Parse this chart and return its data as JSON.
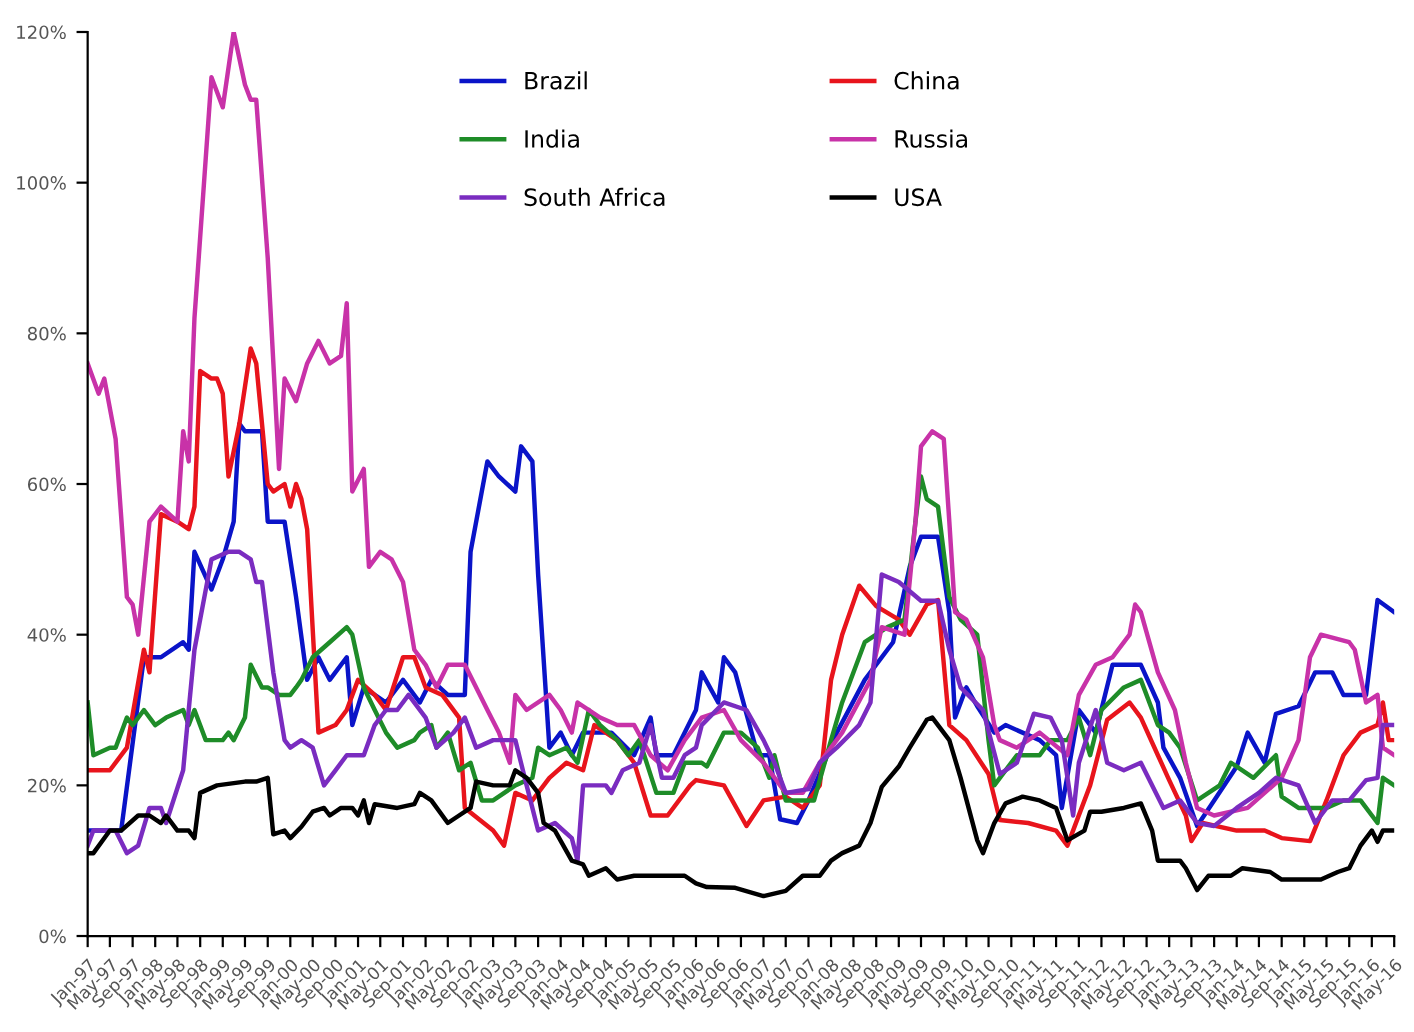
{
  "chart_data": {
    "type": "line",
    "xlim": [
      "1997-01",
      "2016-05"
    ],
    "ylim": [
      0,
      120
    ],
    "yticks": [
      {
        "value": 0,
        "label": "0%"
      },
      {
        "value": 20,
        "label": "20%"
      },
      {
        "value": 40,
        "label": "40%"
      },
      {
        "value": 60,
        "label": "60%"
      },
      {
        "value": 80,
        "label": "80%"
      },
      {
        "value": 100,
        "label": "100%"
      },
      {
        "value": 120,
        "label": "120%"
      }
    ],
    "xticks": [
      {
        "value": "1997-01",
        "label": "Jan-97"
      },
      {
        "value": "1997-05",
        "label": "May-97"
      },
      {
        "value": "1997-09",
        "label": "Sep-97"
      },
      {
        "value": "1998-01",
        "label": "Jan-98"
      },
      {
        "value": "1998-05",
        "label": "May-98"
      },
      {
        "value": "1998-09",
        "label": "Sep-98"
      },
      {
        "value": "1999-01",
        "label": "Jan-99"
      },
      {
        "value": "1999-05",
        "label": "May-99"
      },
      {
        "value": "1999-09",
        "label": "Sep-99"
      },
      {
        "value": "2000-01",
        "label": "Jan-00"
      },
      {
        "value": "2000-05",
        "label": "May-00"
      },
      {
        "value": "2000-09",
        "label": "Sep-00"
      },
      {
        "value": "2001-01",
        "label": "Jan-01"
      },
      {
        "value": "2001-05",
        "label": "May-01"
      },
      {
        "value": "2001-09",
        "label": "Sep-01"
      },
      {
        "value": "2002-01",
        "label": "Jan-02"
      },
      {
        "value": "2002-05",
        "label": "May-02"
      },
      {
        "value": "2002-09",
        "label": "Sep-02"
      },
      {
        "value": "2003-01",
        "label": "Jan-03"
      },
      {
        "value": "2003-05",
        "label": "May-03"
      },
      {
        "value": "2003-09",
        "label": "Sep-03"
      },
      {
        "value": "2004-01",
        "label": "Jan-04"
      },
      {
        "value": "2004-05",
        "label": "May-04"
      },
      {
        "value": "2004-09",
        "label": "Sep-04"
      },
      {
        "value": "2005-01",
        "label": "Jan-05"
      },
      {
        "value": "2005-05",
        "label": "May-05"
      },
      {
        "value": "2005-09",
        "label": "Sep-05"
      },
      {
        "value": "2006-01",
        "label": "Jan-06"
      },
      {
        "value": "2006-05",
        "label": "May-06"
      },
      {
        "value": "2006-09",
        "label": "Sep-06"
      },
      {
        "value": "2007-01",
        "label": "Jan-07"
      },
      {
        "value": "2007-05",
        "label": "May-07"
      },
      {
        "value": "2007-09",
        "label": "Sep-07"
      },
      {
        "value": "2008-01",
        "label": "Jan-08"
      },
      {
        "value": "2008-05",
        "label": "May-08"
      },
      {
        "value": "2008-09",
        "label": "Sep-08"
      },
      {
        "value": "2009-01",
        "label": "Jan-09"
      },
      {
        "value": "2009-05",
        "label": "May-09"
      },
      {
        "value": "2009-09",
        "label": "Sep-09"
      },
      {
        "value": "2010-01",
        "label": "Jan-10"
      },
      {
        "value": "2010-05",
        "label": "May-10"
      },
      {
        "value": "2010-09",
        "label": "Sep-10"
      },
      {
        "value": "2011-01",
        "label": "Jan-11"
      },
      {
        "value": "2011-05",
        "label": "May-11"
      },
      {
        "value": "2011-09",
        "label": "Sep-11"
      },
      {
        "value": "2012-01",
        "label": "Jan-12"
      },
      {
        "value": "2012-05",
        "label": "May-12"
      },
      {
        "value": "2012-09",
        "label": "Sep-12"
      },
      {
        "value": "2013-01",
        "label": "Jan-13"
      },
      {
        "value": "2013-05",
        "label": "May-13"
      },
      {
        "value": "2013-09",
        "label": "Sep-13"
      },
      {
        "value": "2014-01",
        "label": "Jan-14"
      },
      {
        "value": "2014-05",
        "label": "May-14"
      },
      {
        "value": "2014-09",
        "label": "Sep-14"
      },
      {
        "value": "2015-01",
        "label": "Jan-15"
      },
      {
        "value": "2015-05",
        "label": "May-15"
      },
      {
        "value": "2015-09",
        "label": "Sep-15"
      },
      {
        "value": "2016-01",
        "label": "Jan-16"
      },
      {
        "value": "2016-05",
        "label": "May-16"
      }
    ],
    "grid": false,
    "legend": "top",
    "marker": "none",
    "line_style": "solid",
    "series": [
      {
        "name": "Brazil",
        "color": "#0a14c8",
        "x": [
          "1997-01",
          "1997-07",
          "1997-11",
          "1998-02",
          "1998-06",
          "1998-07",
          "1998-08",
          "1998-11",
          "1999-01",
          "1999-03",
          "1999-04",
          "1999-05",
          "1999-08",
          "1999-09",
          "1999-12",
          "2000-02",
          "2000-04",
          "2000-06",
          "2000-08",
          "2000-11",
          "2000-12",
          "2001-02",
          "2001-06",
          "2001-09",
          "2001-12",
          "2002-02",
          "2002-05",
          "2002-08",
          "2002-09",
          "2002-12",
          "2003-02",
          "2003-05",
          "2003-06",
          "2003-08",
          "2003-09",
          "2003-11",
          "2004-01",
          "2004-03",
          "2004-05",
          "2004-10",
          "2005-02",
          "2005-05",
          "2005-06",
          "2005-09",
          "2006-01",
          "2006-02",
          "2006-05",
          "2006-06",
          "2006-08",
          "2006-12",
          "2007-02",
          "2007-04",
          "2007-07",
          "2007-09",
          "2008-02",
          "2008-07",
          "2008-12",
          "2009-03",
          "2009-05",
          "2009-08",
          "2009-10",
          "2009-11",
          "2010-01",
          "2010-03",
          "2010-06",
          "2010-08",
          "2011-02",
          "2011-05",
          "2011-06",
          "2011-09",
          "2011-12",
          "2012-03",
          "2012-08",
          "2012-11",
          "2012-12",
          "2013-03",
          "2013-06",
          "2013-09",
          "2014-01",
          "2014-03",
          "2014-06",
          "2014-08",
          "2014-12",
          "2015-03",
          "2015-06",
          "2015-08",
          "2015-12",
          "2016-02",
          "2016-05"
        ],
        "values": [
          14,
          14,
          37,
          37,
          39,
          38,
          51,
          46,
          50,
          55,
          68,
          67,
          67,
          55,
          55,
          45,
          34,
          37,
          34,
          37,
          28,
          33,
          31,
          34,
          31,
          34,
          32,
          32,
          51,
          63,
          61,
          59,
          65,
          63,
          48,
          25,
          27,
          24,
          27,
          27,
          24,
          29,
          24,
          24,
          30,
          35,
          31,
          37,
          35,
          24,
          24,
          15.5,
          15,
          18,
          27,
          34,
          39,
          49,
          53,
          53,
          43,
          29,
          33,
          30.5,
          27,
          28,
          26,
          24,
          17,
          30,
          27,
          36,
          36,
          31,
          25,
          21,
          14.6,
          18,
          22.5,
          27,
          23,
          29.5,
          30.5,
          35,
          35,
          32,
          32,
          44.6,
          43
        ]
      },
      {
        "name": "China",
        "color": "#e8141c",
        "x": [
          "1997-01",
          "1997-05",
          "1997-08",
          "1997-11",
          "1997-12",
          "1998-02",
          "1998-05",
          "1998-07",
          "1998-08",
          "1998-09",
          "1998-11",
          "1998-12",
          "1999-01",
          "1999-02",
          "1999-04",
          "1999-06",
          "1999-07",
          "1999-09",
          "1999-10",
          "1999-12",
          "2000-01",
          "2000-02",
          "2000-03",
          "2000-04",
          "2000-06",
          "2000-09",
          "2000-11",
          "2001-01",
          "2001-04",
          "2001-06",
          "2001-09",
          "2001-11",
          "2002-01",
          "2002-04",
          "2002-07",
          "2002-08",
          "2003-01",
          "2003-03",
          "2003-05",
          "2003-08",
          "2003-11",
          "2004-02",
          "2004-05",
          "2004-07",
          "2004-11",
          "2005-02",
          "2005-05",
          "2005-08",
          "2005-12",
          "2006-01",
          "2006-06",
          "2006-10",
          "2007-01",
          "2007-05",
          "2007-08",
          "2007-11",
          "2008-01",
          "2008-03",
          "2008-06",
          "2008-09",
          "2009-01",
          "2009-03",
          "2009-06",
          "2009-08",
          "2009-10",
          "2010-01",
          "2010-05",
          "2010-07",
          "2010-12",
          "2011-05",
          "2011-07",
          "2011-11",
          "2012-02",
          "2012-06",
          "2012-08",
          "2012-11",
          "2013-01",
          "2013-04",
          "2013-05",
          "2013-07",
          "2014-01",
          "2014-06",
          "2014-09",
          "2015-02",
          "2015-05",
          "2015-08",
          "2015-11",
          "2016-02",
          "2016-03",
          "2016-04",
          "2016-05"
        ],
        "values": [
          22,
          22,
          25,
          38,
          35,
          56,
          55,
          54,
          57,
          75,
          74,
          74,
          72,
          61,
          68,
          78,
          76,
          60,
          59,
          60,
          57,
          60,
          58,
          54,
          27,
          28,
          30,
          34,
          32,
          30,
          37,
          37,
          33,
          32,
          29,
          17,
          14,
          12,
          19,
          18,
          21,
          23,
          22,
          28,
          26,
          23,
          16,
          16,
          20,
          20.7,
          20,
          14.6,
          18,
          18.5,
          17,
          20,
          34,
          40,
          46.5,
          43.8,
          42,
          40,
          44,
          44.6,
          28,
          26,
          21.5,
          15.4,
          15,
          14,
          12,
          20,
          28.7,
          31,
          29,
          24,
          20.7,
          16,
          12.6,
          15,
          14,
          14,
          13,
          12.6,
          18,
          24,
          27,
          28,
          31,
          26,
          26
        ]
      },
      {
        "name": "India",
        "color": "#1e8c28",
        "x": [
          "1997-01",
          "1997-02",
          "1997-05",
          "1997-06",
          "1997-08",
          "1997-09",
          "1997-11",
          "1998-01",
          "1998-03",
          "1998-06",
          "1998-07",
          "1998-08",
          "1998-10",
          "1999-01",
          "1999-02",
          "1999-03",
          "1999-05",
          "1999-06",
          "1999-08",
          "1999-09",
          "1999-11",
          "2000-01",
          "2000-02",
          "2000-03",
          "2000-05",
          "2000-08",
          "2000-11",
          "2000-12",
          "2001-02",
          "2001-04",
          "2001-06",
          "2001-08",
          "2001-11",
          "2001-12",
          "2002-02",
          "2002-03",
          "2002-05",
          "2002-07",
          "2002-09",
          "2002-11",
          "2003-01",
          "2003-05",
          "2003-08",
          "2003-09",
          "2003-11",
          "2004-02",
          "2004-04",
          "2004-06",
          "2004-08",
          "2004-11",
          "2005-01",
          "2005-03",
          "2005-06",
          "2005-09",
          "2005-11",
          "2006-02",
          "2006-03",
          "2006-06",
          "2006-09",
          "2006-12",
          "2007-02",
          "2007-03",
          "2007-05",
          "2007-10",
          "2008-01",
          "2008-03",
          "2008-07",
          "2008-11",
          "2009-02",
          "2009-04",
          "2009-05",
          "2009-06",
          "2009-08",
          "2009-10",
          "2009-12",
          "2010-03",
          "2010-05",
          "2010-06",
          "2010-10",
          "2011-02",
          "2011-04",
          "2011-07",
          "2011-09",
          "2011-11",
          "2012-01",
          "2012-05",
          "2012-08",
          "2012-11",
          "2013-01",
          "2013-03",
          "2013-06",
          "2013-10",
          "2013-12",
          "2014-04",
          "2014-08",
          "2014-09",
          "2014-12",
          "2015-05",
          "2015-08",
          "2015-11",
          "2016-02",
          "2016-03",
          "2016-05"
        ],
        "values": [
          31,
          24,
          25,
          25,
          29,
          28,
          30,
          28,
          29,
          30,
          28,
          30,
          26,
          26,
          27,
          26,
          29,
          36,
          33,
          33,
          32,
          32,
          33,
          34,
          37,
          39,
          41,
          40,
          33,
          30,
          27,
          25,
          26,
          27,
          28,
          25,
          27,
          22,
          23,
          18,
          18,
          20,
          21,
          25,
          24,
          25,
          23,
          30,
          28,
          26,
          24,
          26,
          19,
          19,
          23,
          23,
          22.5,
          27,
          27,
          25,
          21,
          24,
          18,
          18,
          26,
          31,
          39,
          41,
          42,
          55,
          61,
          58,
          57,
          45,
          42,
          40,
          26,
          20,
          24,
          24,
          26,
          26,
          29,
          24,
          30,
          33,
          34,
          28,
          27,
          25,
          18,
          20,
          23,
          21,
          24,
          18.5,
          17,
          17,
          18,
          18,
          15,
          21,
          20
        ]
      },
      {
        "name": "Russia",
        "color": "#c832a8",
        "x": [
          "1997-01",
          "1997-03",
          "1997-04",
          "1997-06",
          "1997-08",
          "1997-09",
          "1997-10",
          "1997-12",
          "1998-02",
          "1998-05",
          "1998-06",
          "1998-07",
          "1998-08",
          "1998-11",
          "1999-01",
          "1999-03",
          "1999-05",
          "1999-06",
          "1999-07",
          "1999-09",
          "1999-11",
          "1999-12",
          "2000-02",
          "2000-04",
          "2000-06",
          "2000-08",
          "2000-10",
          "2000-11",
          "2000-12",
          "2001-02",
          "2001-03",
          "2001-05",
          "2001-07",
          "2001-09",
          "2001-11",
          "2002-01",
          "2002-03",
          "2002-05",
          "2002-08",
          "2002-12",
          "2003-02",
          "2003-04",
          "2003-05",
          "2003-07",
          "2003-11",
          "2004-01",
          "2004-03",
          "2004-04",
          "2004-08",
          "2004-11",
          "2005-02",
          "2005-05",
          "2005-08",
          "2005-11",
          "2006-02",
          "2006-06",
          "2006-09",
          "2007-01",
          "2007-05",
          "2007-08",
          "2007-11",
          "2008-03",
          "2008-08",
          "2008-10",
          "2009-02",
          "2009-04",
          "2009-05",
          "2009-07",
          "2009-09",
          "2009-10",
          "2009-11",
          "2010-01",
          "2010-04",
          "2010-06",
          "2010-07",
          "2010-10",
          "2011-02",
          "2011-07",
          "2011-09",
          "2011-12",
          "2012-03",
          "2012-06",
          "2012-07",
          "2012-08",
          "2012-11",
          "2013-02",
          "2013-04",
          "2013-06",
          "2013-09",
          "2014-03",
          "2014-09",
          "2014-12",
          "2015-02",
          "2015-04",
          "2015-09",
          "2015-10",
          "2015-12",
          "2016-02",
          "2016-03",
          "2016-05"
        ],
        "values": [
          76,
          72,
          74,
          66,
          45,
          44,
          40,
          55,
          57,
          55,
          67,
          63,
          82,
          114,
          110,
          120,
          113,
          111,
          111,
          90,
          62,
          74,
          71,
          76,
          79,
          76,
          77,
          84,
          59,
          62,
          49,
          51,
          50,
          47,
          38,
          36,
          33,
          36,
          36,
          30,
          27,
          23,
          32,
          30,
          32,
          30,
          27,
          31,
          29,
          28,
          28,
          24,
          22,
          26,
          29,
          30,
          26,
          23,
          19,
          19,
          23,
          27,
          34,
          41,
          40,
          55,
          65,
          67,
          66,
          55,
          43,
          42,
          37,
          28,
          26,
          25,
          27,
          24,
          32,
          36,
          37,
          40,
          44,
          43,
          35,
          30,
          23,
          17,
          16,
          17,
          21,
          26,
          37,
          40,
          39,
          38,
          31,
          32,
          25,
          24
        ]
      },
      {
        "name": "South Africa",
        "color": "#7a2cc0",
        "x": [
          "1997-01",
          "1997-02",
          "1997-06",
          "1997-08",
          "1997-10",
          "1997-12",
          "1998-02",
          "1998-03",
          "1998-06",
          "1998-07",
          "1998-08",
          "1998-11",
          "1999-02",
          "1999-04",
          "1999-06",
          "1999-07",
          "1999-08",
          "1999-10",
          "1999-12",
          "2000-01",
          "2000-03",
          "2000-05",
          "2000-07",
          "2000-09",
          "2000-11",
          "2001-02",
          "2001-04",
          "2001-06",
          "2001-08",
          "2001-10",
          "2002-01",
          "2002-03",
          "2002-06",
          "2002-08",
          "2002-10",
          "2003-01",
          "2003-05",
          "2003-07",
          "2003-09",
          "2003-12",
          "2004-03",
          "2004-04",
          "2004-05",
          "2004-09",
          "2004-10",
          "2004-12",
          "2005-03",
          "2005-05",
          "2005-07",
          "2005-09",
          "2005-11",
          "2006-01",
          "2006-02",
          "2006-06",
          "2006-10",
          "2007-01",
          "2007-03",
          "2007-05",
          "2007-09",
          "2007-11",
          "2008-02",
          "2008-06",
          "2008-08",
          "2008-10",
          "2009-01",
          "2009-05",
          "2009-08",
          "2009-10",
          "2009-12",
          "2010-04",
          "2010-07",
          "2010-10",
          "2011-01",
          "2011-04",
          "2011-06",
          "2011-08",
          "2011-09",
          "2011-12",
          "2012-02",
          "2012-05",
          "2012-08",
          "2012-12",
          "2013-03",
          "2013-06",
          "2013-09",
          "2014-01",
          "2014-05",
          "2014-08",
          "2014-12",
          "2015-03",
          "2015-06",
          "2015-09",
          "2015-12",
          "2016-02",
          "2016-03",
          "2016-05"
        ],
        "values": [
          12,
          14,
          14,
          11,
          12,
          17,
          17,
          15,
          22,
          30,
          38,
          50,
          51,
          51,
          50,
          47,
          47,
          35,
          26,
          25,
          26,
          25,
          20,
          22,
          24,
          24,
          28,
          30,
          30,
          32,
          29,
          25,
          27,
          29,
          25,
          26,
          26,
          20,
          14,
          15,
          13,
          10,
          20,
          20,
          19,
          22,
          23,
          28,
          21,
          21,
          24,
          25,
          28,
          31,
          30,
          26,
          23,
          19,
          19.5,
          23,
          25,
          28,
          31,
          48,
          47,
          44.5,
          44.5,
          38,
          33,
          30,
          21.5,
          23,
          29.5,
          29,
          26,
          16,
          23,
          30,
          23,
          22,
          23,
          17,
          18,
          15,
          14.6,
          17,
          19,
          21,
          20,
          15,
          18,
          18,
          20.7,
          21,
          28,
          28
        ]
      },
      {
        "name": "USA",
        "color": "#000000",
        "x": [
          "1997-01",
          "1997-02",
          "1997-05",
          "1997-07",
          "1997-10",
          "1997-12",
          "1998-02",
          "1998-03",
          "1998-05",
          "1998-07",
          "1998-08",
          "1998-09",
          "1998-12",
          "1999-05",
          "1999-07",
          "1999-09",
          "1999-10",
          "1999-12",
          "2000-01",
          "2000-03",
          "2000-05",
          "2000-07",
          "2000-08",
          "2000-10",
          "2000-12",
          "2001-01",
          "2001-02",
          "2001-03",
          "2001-04",
          "2001-08",
          "2001-11",
          "2001-12",
          "2002-02",
          "2002-05",
          "2002-07",
          "2002-09",
          "2002-10",
          "2003-01",
          "2003-04",
          "2003-05",
          "2003-07",
          "2003-09",
          "2003-10",
          "2003-12",
          "2004-03",
          "2004-05",
          "2004-06",
          "2004-09",
          "2004-11",
          "2005-02",
          "2005-05",
          "2005-08",
          "2005-11",
          "2006-01",
          "2006-03",
          "2006-08",
          "2007-01",
          "2007-05",
          "2007-08",
          "2007-11",
          "2008-01",
          "2008-03",
          "2008-06",
          "2008-08",
          "2008-10",
          "2009-01",
          "2009-03",
          "2009-06",
          "2009-07",
          "2009-10",
          "2009-12",
          "2010-03",
          "2010-04",
          "2010-06",
          "2010-08",
          "2010-11",
          "2011-02",
          "2011-05",
          "2011-07",
          "2011-10",
          "2011-11",
          "2012-01",
          "2012-05",
          "2012-08",
          "2012-10",
          "2012-11",
          "2013-03",
          "2013-04",
          "2013-06",
          "2013-08",
          "2013-12",
          "2014-02",
          "2014-07",
          "2014-09",
          "2015-04",
          "2015-07",
          "2015-09",
          "2015-11",
          "2016-01",
          "2016-02",
          "2016-03",
          "2016-05"
        ],
        "values": [
          11,
          11,
          14,
          14,
          16,
          16,
          15,
          16,
          14,
          14,
          13,
          19,
          20,
          20.5,
          20.5,
          21,
          13.5,
          14,
          13,
          14.5,
          16.5,
          17,
          16,
          17,
          17,
          16,
          18,
          15,
          17.5,
          17,
          17.5,
          19,
          18,
          15,
          16,
          17,
          20.5,
          20,
          20,
          22,
          21,
          19,
          15,
          14,
          10,
          9.5,
          8,
          9,
          7.5,
          8,
          8,
          8,
          8,
          7,
          6.5,
          6.4,
          5.3,
          6,
          8,
          8,
          10,
          11,
          12,
          15,
          19.8,
          22.5,
          25,
          28.7,
          29,
          26,
          21,
          12.7,
          11,
          15,
          17.6,
          18.5,
          18,
          17,
          12.7,
          14,
          16.5,
          16.5,
          17,
          17.6,
          14,
          10,
          10,
          9,
          6.1,
          8,
          8,
          9,
          8.5,
          7.5,
          7.5,
          8.5,
          9,
          12,
          14,
          12.5,
          14,
          14
        ]
      }
    ]
  }
}
